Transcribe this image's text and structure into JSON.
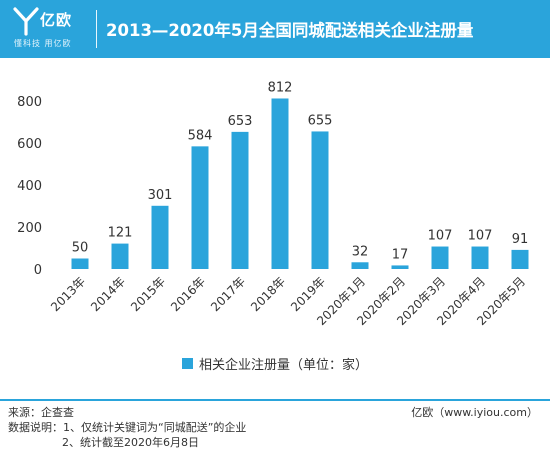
{
  "header": {
    "logo_name": "亿欧",
    "logo_tagline": "懂科技 用亿欧",
    "title": "2013—2020年5月全国同城配送相关企业注册量"
  },
  "chart_data": {
    "type": "bar",
    "title": "2013—2020年5月全国同城配送相关企业注册量",
    "categories": [
      "2013年",
      "2014年",
      "2015年",
      "2016年",
      "2017年",
      "2018年",
      "2019年",
      "2020年1月",
      "2020年2月",
      "2020年3月",
      "2020年4月",
      "2020年5月"
    ],
    "series": [
      {
        "name": "相关企业注册量（单位：家）",
        "values": [
          50,
          121,
          301,
          584,
          653,
          812,
          655,
          32,
          17,
          107,
          107,
          91
        ]
      }
    ],
    "y_ticks": [
      "0",
      "200",
      "400",
      "600",
      "800"
    ],
    "ylim": [
      0,
      800
    ],
    "grid": false,
    "legend": "bottom",
    "bar_color": "#2aa4db"
  },
  "legend": {
    "label": "相关企业注册量（单位：家）"
  },
  "footer": {
    "source": "来源：企查查",
    "note_1": "数据说明：1、仅统计关键词为“同城配送”的企业",
    "note_2": "2、统计截至2020年6月8日",
    "brand": "亿欧（www.iyiou.com）"
  }
}
